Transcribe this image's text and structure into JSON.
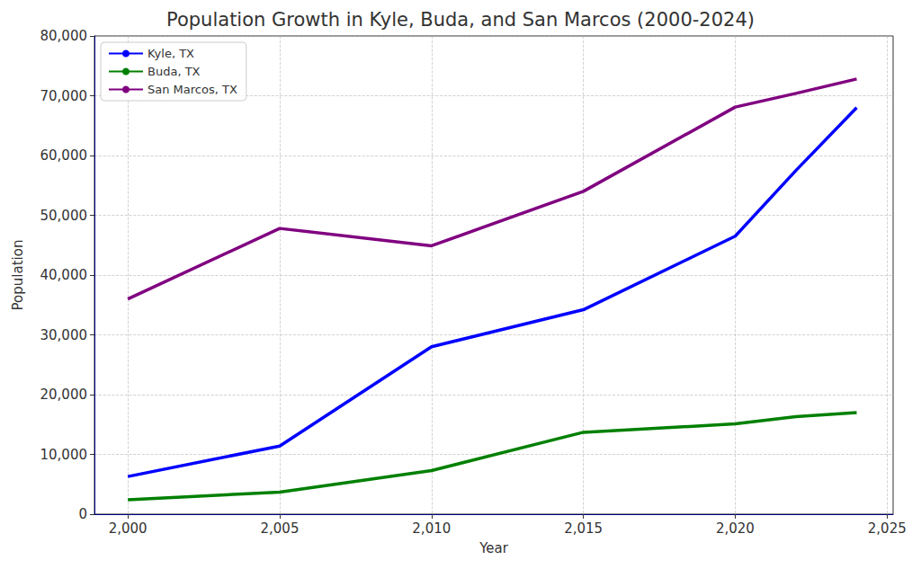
{
  "chart_data": {
    "type": "line",
    "title": "Population Growth in Kyle, Buda, and San Marcos (2000-2024)",
    "x_label": "Year",
    "y_label": "Population",
    "x": [
      2000,
      2005,
      2010,
      2015,
      2020,
      2022,
      2024
    ],
    "series": [
      {
        "name": "Kyle, TX",
        "color": "#0000ff",
        "values": [
          6300,
          11400,
          28000,
          34200,
          46500,
          57500,
          68000
        ]
      },
      {
        "name": "Buda, TX",
        "color": "#008000",
        "values": [
          2400,
          3700,
          7300,
          13700,
          15100,
          16300,
          17000
        ]
      },
      {
        "name": "San Marcos, TX",
        "color": "#800080",
        "values": [
          36000,
          47800,
          44900,
          54000,
          68100,
          70400,
          72800
        ]
      }
    ],
    "xlim": [
      1998.9,
      2025.2
    ],
    "xticks": [
      2000,
      2005,
      2010,
      2015,
      2020,
      2025
    ],
    "ylim": [
      0,
      80000
    ],
    "yticks": [
      0,
      10000,
      20000,
      30000,
      40000,
      50000,
      60000,
      70000,
      80000
    ],
    "grid": true,
    "legend": "upper left"
  }
}
